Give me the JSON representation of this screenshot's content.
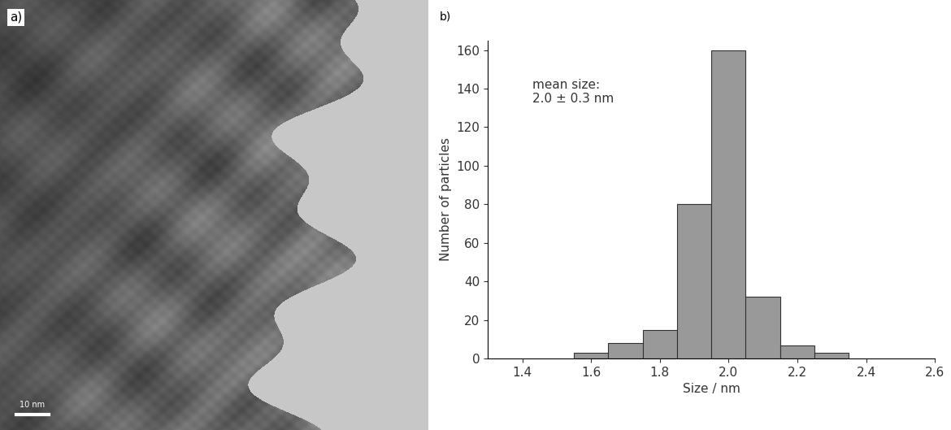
{
  "image_panel": {
    "label": "a)",
    "scale_bar": "10 nm"
  },
  "chart_data": {
    "type": "histogram",
    "panel_label": "b)",
    "annotation": "mean size:\n2.0 ± 0.3 nm",
    "x_label": "Size / nm",
    "y_label": "Number of particles",
    "bins": [
      1.55,
      1.65,
      1.75,
      1.85,
      1.95,
      2.05,
      2.15,
      2.25,
      2.35
    ],
    "values": [
      3,
      8,
      15,
      80,
      160,
      32,
      7,
      3
    ],
    "color": "#999999",
    "xlim": [
      1.3,
      2.6
    ],
    "xticks": [
      1.4,
      1.6,
      1.8,
      2.0,
      2.2,
      2.4,
      2.6
    ],
    "ylim": [
      0,
      165
    ],
    "yticks": [
      0,
      20,
      40,
      60,
      80,
      100,
      120,
      140,
      160
    ],
    "grid": false
  }
}
